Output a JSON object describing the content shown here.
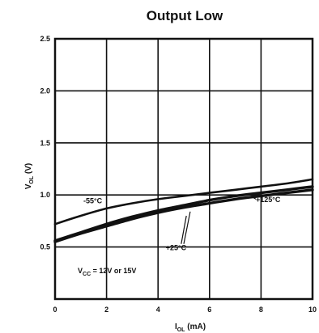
{
  "chart_data": {
    "type": "line",
    "title": "Output Low",
    "xlabel": "I",
    "xlabel_sub": "OL",
    "xlabel_unit": "(mA)",
    "ylabel": "V",
    "ylabel_sub": "OL",
    "ylabel_unit": "(V)",
    "xlim": [
      0,
      10
    ],
    "ylim": [
      0,
      2.5
    ],
    "x_ticks": [
      0,
      2,
      4,
      6,
      8,
      10
    ],
    "x_tick_labels": [
      "0",
      "2",
      "4",
      "6",
      "8",
      "10"
    ],
    "y_ticks": [
      0.5,
      1.0,
      1.5,
      2.0,
      2.5
    ],
    "y_tick_labels": [
      "0.5",
      "1.0",
      "1.5",
      "2.0",
      "2.5"
    ],
    "grid": true,
    "series": [
      {
        "name": "-55°C",
        "x": [
          0,
          1,
          2,
          3,
          4,
          5,
          6,
          7,
          8,
          9,
          10
        ],
        "y": [
          0.72,
          0.8,
          0.87,
          0.92,
          0.96,
          0.99,
          1.02,
          1.05,
          1.08,
          1.11,
          1.15
        ]
      },
      {
        "name": "+25°C",
        "x": [
          0,
          1,
          2,
          3,
          4,
          5,
          6,
          7,
          8,
          9,
          10
        ],
        "y": [
          0.56,
          0.64,
          0.72,
          0.79,
          0.85,
          0.9,
          0.95,
          0.99,
          1.02,
          1.05,
          1.08
        ]
      },
      {
        "name": "+125°C",
        "x": [
          0,
          1,
          2,
          3,
          4,
          5,
          6,
          7,
          8,
          9,
          10
        ],
        "y": [
          0.55,
          0.63,
          0.7,
          0.77,
          0.83,
          0.88,
          0.92,
          0.96,
          0.99,
          1.02,
          1.05
        ]
      }
    ],
    "annotations": [
      {
        "text": "-55°C",
        "x": 1.1,
        "y": 0.92
      },
      {
        "text": "+25°C",
        "x": 4.3,
        "y": 0.47
      },
      {
        "text": "+125°C",
        "x": 7.8,
        "y": 0.93
      }
    ],
    "condition_text": "V",
    "condition_sub": "CC",
    "condition_rest": " = 12V or 15V"
  }
}
